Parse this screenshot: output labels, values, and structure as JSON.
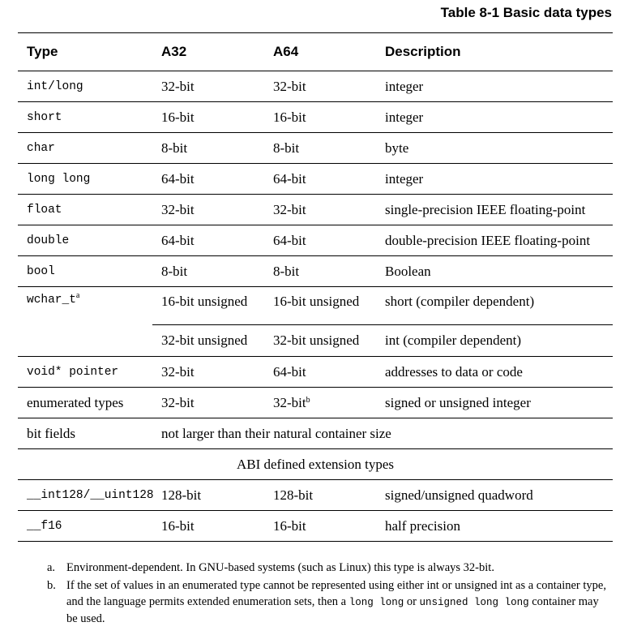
{
  "caption": "Table 8-1 Basic data types",
  "headers": [
    "Type",
    "A32",
    "A64",
    "Description"
  ],
  "rows": [
    {
      "type": "int/long",
      "a32": "32-bit",
      "a64": "32-bit",
      "desc": "integer"
    },
    {
      "type": "short",
      "a32": "16-bit",
      "a64": "16-bit",
      "desc": "integer"
    },
    {
      "type": "char",
      "a32": "8-bit",
      "a64": "8-bit",
      "desc": "byte"
    },
    {
      "type": "long long",
      "a32": "64-bit",
      "a64": "64-bit",
      "desc": "integer"
    },
    {
      "type": "float",
      "a32": "32-bit",
      "a64": "32-bit",
      "desc": "single-precision IEEE floating-point"
    },
    {
      "type": "double",
      "a32": "64-bit",
      "a64": "64-bit",
      "desc": "double-precision IEEE floating-point"
    },
    {
      "type": "bool",
      "a32": "8-bit",
      "a64": "8-bit",
      "desc": "Boolean"
    }
  ],
  "wchar": {
    "type": "wchar_t",
    "type_note": "a",
    "first": {
      "a32": "16-bit unsigned",
      "a64": "16-bit unsigned",
      "desc": "short (compiler dependent)"
    },
    "second": {
      "a32": "32-bit unsigned",
      "a64": "32-bit unsigned",
      "desc": "int (compiler dependent)"
    }
  },
  "void_ptr": {
    "type": "void* pointer",
    "a32": "32-bit",
    "a64": "64-bit",
    "desc": "addresses to data or code"
  },
  "enum_types": {
    "type": "enumerated types",
    "a32": "32-bit",
    "a64": "32-bit",
    "a64_note": "b",
    "desc": "signed or unsigned integer"
  },
  "bit_fields": {
    "type": "bit fields",
    "desc": "not larger than their natural container size"
  },
  "abi_section": "ABI defined extension types",
  "abi_rows": [
    {
      "type": "__int128/__uint128",
      "a32": "128-bit",
      "a64": "128-bit",
      "desc": "signed/unsigned quadword"
    },
    {
      "type": "__f16",
      "a32": "16-bit",
      "a64": "16-bit",
      "desc": "half precision"
    }
  ],
  "notes": {
    "a_label": "a.",
    "a_text": "Environment-dependent. In GNU-based systems (such as Linux) this type is always 32-bit.",
    "b_label": "b.",
    "b_text_1": "If the set of values in an enumerated type cannot be represented using either int or unsigned int as a container type, and the language permits extended enumeration sets, then a ",
    "b_code_1": "long long",
    "b_text_2": " or ",
    "b_code_2": "unsigned long long",
    "b_text_3": " container may be used."
  }
}
